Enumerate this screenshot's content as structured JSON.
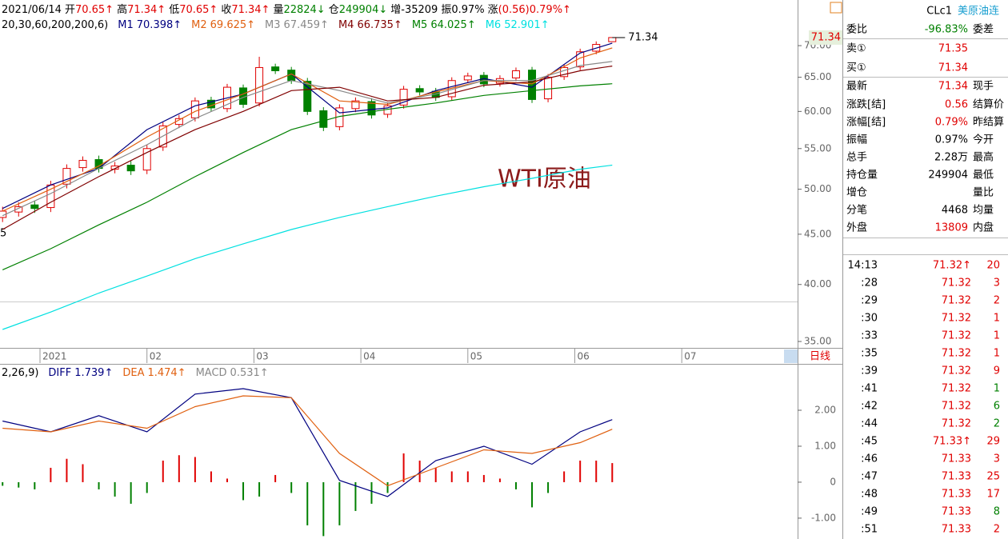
{
  "header": {
    "date": "2021/06/14",
    "quote": [
      {
        "label": "开",
        "value": "70.65↑",
        "color": "#e00000"
      },
      {
        "label": "高",
        "value": "71.34↑",
        "color": "#e00000"
      },
      {
        "label": "低",
        "value": "70.65↑",
        "color": "#e00000"
      },
      {
        "label": "收",
        "value": "71.34↑",
        "color": "#e00000"
      },
      {
        "label": "量",
        "value": "22824↓",
        "color": "#008000"
      },
      {
        "label": "仓",
        "value": "249904↓",
        "color": "#008000"
      },
      {
        "label": "增",
        "value": "-35209",
        "color": "#000000"
      },
      {
        "label": "振",
        "value": "0.97%",
        "color": "#000000"
      },
      {
        "label": "涨",
        "value": "(0.56)0.79%↑",
        "color": "#e00000"
      }
    ]
  },
  "chart_data": [
    {
      "type": "candlestick",
      "params": "20,30,60,200,200,6)",
      "log_scale": true,
      "xlim": [
        0.626,
        8.083
      ],
      "ylim": [
        34.48,
        77.9
      ],
      "xticks": [
        {
          "value": 1,
          "label": "2021"
        },
        {
          "value": 2,
          "label": "02"
        },
        {
          "value": 3,
          "label": "03"
        },
        {
          "value": 4,
          "label": "04"
        },
        {
          "value": 5,
          "label": "05"
        },
        {
          "value": 6,
          "label": "06"
        },
        {
          "value": 7,
          "label": "07"
        }
      ],
      "yticks": [
        {
          "value": 70,
          "label": "70.00"
        },
        {
          "value": 65,
          "label": "65.00"
        },
        {
          "value": 60,
          "label": "60.00"
        },
        {
          "value": 55,
          "label": "55.00"
        },
        {
          "value": 50,
          "label": "50.00"
        },
        {
          "value": 45,
          "label": "45.00"
        },
        {
          "value": 40,
          "label": "40.00"
        },
        {
          "value": 35,
          "label": "35.00"
        }
      ],
      "up_color": "#e00000",
      "down_color": "#008000",
      "candles": [
        [
          0.65,
          46.8,
          48.0,
          46.3,
          47.5
        ],
        [
          0.8,
          47.4,
          48.5,
          46.9,
          48
        ],
        [
          0.95,
          48.2,
          48.7,
          47.3,
          47.8
        ],
        [
          1.1,
          47.9,
          51.0,
          47.4,
          50.5
        ],
        [
          1.25,
          50.6,
          53.0,
          50.1,
          52.5
        ],
        [
          1.4,
          52.6,
          54.0,
          52.1,
          53.5
        ],
        [
          1.55,
          53.6,
          54.1,
          52.0,
          52.5
        ],
        [
          1.7,
          52.4,
          53.3,
          51.9,
          52.8
        ],
        [
          1.85,
          52.9,
          53.4,
          51.7,
          52.2
        ],
        [
          2.0,
          52.3,
          55.5,
          51.8,
          55
        ],
        [
          2.15,
          55.2,
          58.5,
          54.7,
          58
        ],
        [
          2.3,
          58.2,
          59.5,
          57.7,
          59
        ],
        [
          2.45,
          59.1,
          62.0,
          58.6,
          61.5
        ],
        [
          2.6,
          61.6,
          62.1,
          60.0,
          60.5
        ],
        [
          2.75,
          60.4,
          64.0,
          59.9,
          63.5
        ],
        [
          2.9,
          63.4,
          63.9,
          60.5,
          61
        ],
        [
          3.05,
          61.2,
          68.2,
          60.7,
          66.5
        ],
        [
          3.2,
          66.6,
          67.1,
          65.5,
          66
        ],
        [
          3.35,
          66.1,
          66.6,
          64.0,
          64.5
        ],
        [
          3.5,
          64.4,
          64.9,
          59.5,
          60
        ],
        [
          3.65,
          60.1,
          60.6,
          57.3,
          57.8
        ],
        [
          3.8,
          57.9,
          61.0,
          57.4,
          60.5
        ],
        [
          3.95,
          60.4,
          62.0,
          59.9,
          61.5
        ],
        [
          4.1,
          61.4,
          61.9,
          59.0,
          59.5
        ],
        [
          4.25,
          59.6,
          61.3,
          59.1,
          60.8
        ],
        [
          4.4,
          60.9,
          63.7,
          60.4,
          63.2
        ],
        [
          4.55,
          63.3,
          63.8,
          62.3,
          62.8
        ],
        [
          4.7,
          62.9,
          63.4,
          61.5,
          62
        ],
        [
          4.85,
          62.1,
          65.0,
          61.6,
          64.5
        ],
        [
          5.0,
          64.6,
          65.7,
          64.1,
          65.2
        ],
        [
          5.15,
          65.3,
          65.8,
          63.5,
          64
        ],
        [
          5.3,
          64.1,
          65.3,
          63.6,
          64.8
        ],
        [
          5.45,
          64.9,
          66.5,
          64.4,
          66
        ],
        [
          5.6,
          66.1,
          66.6,
          61.2,
          61.7
        ],
        [
          5.75,
          61.8,
          65.5,
          61.3,
          65
        ],
        [
          5.9,
          65.1,
          67.0,
          64.6,
          66.5
        ],
        [
          6.05,
          66.6,
          69.5,
          66.1,
          69
        ],
        [
          6.2,
          69.1,
          70.7,
          68.6,
          70.2
        ],
        [
          6.35,
          70.65,
          71.34,
          70.65,
          71.34
        ]
      ],
      "last_price": 71.34,
      "x": [
        0.65,
        1.1,
        1.55,
        2.0,
        2.45,
        2.9,
        3.35,
        3.8,
        4.25,
        4.7,
        5.15,
        5.6,
        6.05,
        6.35
      ],
      "series": [
        {
          "name": "M1",
          "value_label": "70.398↑",
          "color": "#000080",
          "values": [
            47.8,
            50.5,
            52.5,
            57.5,
            60.8,
            62.5,
            65.5,
            59.8,
            60.5,
            63,
            64.8,
            63.5,
            68.8,
            70.398
          ]
        },
        {
          "name": "M2",
          "value_label": "69.625↑",
          "color": "#e06010",
          "values": [
            47.5,
            50,
            52.8,
            56.5,
            60,
            62.5,
            65.5,
            61.5,
            61,
            62.8,
            64.5,
            64,
            68,
            69.625
          ]
        },
        {
          "name": "M3",
          "value_label": "67.459↑",
          "color": "#888888",
          "values": [
            47,
            49.5,
            52.5,
            55.5,
            59,
            62,
            64.5,
            63,
            61.2,
            62.5,
            64.5,
            64.5,
            66.8,
            67.459
          ]
        },
        {
          "name": "M4",
          "value_label": "66.735↑",
          "color": "#800000",
          "values": [
            45.5,
            48.5,
            51.5,
            54.5,
            57.5,
            60,
            63,
            63.5,
            61.5,
            62,
            63.8,
            64.3,
            66,
            66.735
          ]
        },
        {
          "name": "M5",
          "value_label": "64.025↑",
          "color": "#008000",
          "values": [
            41.4,
            43.5,
            46,
            48.5,
            51.5,
            54.5,
            57.5,
            59.3,
            60.3,
            61.2,
            62.3,
            63,
            63.7,
            64.025
          ]
        },
        {
          "name": "M6",
          "value_label": "52.901↑",
          "color": "#00e0e0",
          "values": [
            36,
            37.5,
            39.2,
            40.8,
            42.5,
            44,
            45.5,
            46.8,
            48,
            49.2,
            50.3,
            51.3,
            52.4,
            52.901
          ]
        }
      ],
      "edge_label": "5",
      "watermark": "WTI原油",
      "period": "日线"
    },
    {
      "type": "macd",
      "params": "2,26,9)",
      "ylim": [
        -1.58,
        3.29
      ],
      "yticks": [
        {
          "value": 2,
          "label": "2.00"
        },
        {
          "value": 1,
          "label": "1.00"
        },
        0,
        {
          "value": -1,
          "label": "-1.00"
        }
      ],
      "x": [
        0.65,
        1.1,
        1.55,
        2.0,
        2.45,
        2.9,
        3.35,
        3.8,
        4.25,
        4.7,
        5.15,
        5.6,
        6.05,
        6.35
      ],
      "series": [
        {
          "name": "DIFF",
          "value_label": "1.739↑",
          "color": "#000080",
          "values": [
            1.7,
            1.4,
            1.85,
            1.4,
            2.45,
            2.6,
            2.35,
            0.05,
            -0.4,
            0.6,
            1.0,
            0.5,
            1.4,
            1.739
          ]
        },
        {
          "name": "DEA",
          "value_label": "1.474↑",
          "color": "#e06010",
          "values": [
            1.5,
            1.4,
            1.7,
            1.5,
            2.1,
            2.4,
            2.35,
            0.8,
            -0.1,
            0.4,
            0.9,
            0.8,
            1.1,
            1.474
          ]
        }
      ],
      "histogram": {
        "name": "MACD",
        "value_label": "0.531↑",
        "color": "#888888",
        "up_color": "#e00000",
        "down_color": "#008000",
        "values": [
          -0.1,
          -0.15,
          -0.2,
          0.4,
          0.65,
          0.5,
          -0.2,
          -0.4,
          -0.6,
          -0.3,
          0.6,
          0.75,
          0.7,
          0.3,
          0.1,
          -0.5,
          -0.4,
          0.2,
          -0.3,
          -1.2,
          -1.5,
          -1.2,
          -0.8,
          -0.6,
          -0.3,
          0.8,
          0.6,
          0.4,
          0.3,
          0.3,
          0.2,
          0.1,
          -0.2,
          -0.7,
          -0.3,
          0.3,
          0.6,
          0.6,
          0.531
        ]
      }
    }
  ],
  "quote_panel": {
    "code": "CLc1",
    "name": "美原油连",
    "rows": [
      {
        "label": "委比",
        "value": "-96.83%",
        "color": "#008000",
        "label2": "委差"
      },
      {
        "label": "卖①",
        "value": "71.35",
        "color": "#e00000"
      },
      {
        "label": "买①",
        "value": "71.34",
        "color": "#e00000"
      },
      {
        "label": "最新",
        "value": "71.34",
        "color": "#e00000",
        "label2": "现手"
      },
      {
        "label": "涨跌[结]",
        "value": "0.56",
        "color": "#e00000",
        "label2": "结算价"
      },
      {
        "label": "涨幅[结]",
        "value": "0.79%",
        "color": "#e00000",
        "label2": "昨结算"
      },
      {
        "label": "振幅",
        "value": "0.97%",
        "color": "#000000",
        "label2": "今开"
      },
      {
        "label": "总手",
        "value": "2.28万",
        "color": "#000000",
        "label2": "最高"
      },
      {
        "label": "持仓量",
        "value": "249904",
        "color": "#000000",
        "label2": "最低"
      },
      {
        "label": "增仓",
        "label2": "量比"
      },
      {
        "label": "分笔",
        "value": "4468",
        "color": "#000000",
        "label2": "均量"
      },
      {
        "label": "外盘",
        "value": "13809",
        "color": "#e00000",
        "label2": "内盘"
      }
    ],
    "price_color": "#e00000",
    "ticks": [
      {
        "time": "14:13",
        "price": "71.32↑",
        "volume": "20",
        "color": "#e00000"
      },
      {
        "time": ":28",
        "price": "71.32",
        "volume": "3",
        "color": "#e00000"
      },
      {
        "time": ":29",
        "price": "71.32",
        "volume": "2",
        "color": "#e00000"
      },
      {
        "time": ":30",
        "price": "71.32",
        "volume": "1",
        "color": "#e00000"
      },
      {
        "time": ":33",
        "price": "71.32",
        "volume": "1",
        "color": "#e00000"
      },
      {
        "time": ":35",
        "price": "71.32",
        "volume": "1",
        "color": "#e00000"
      },
      {
        "time": ":39",
        "price": "71.32",
        "volume": "9",
        "color": "#e00000"
      },
      {
        "time": ":41",
        "price": "71.32",
        "volume": "1",
        "color": "#008000"
      },
      {
        "time": ":42",
        "price": "71.32",
        "volume": "6",
        "color": "#008000"
      },
      {
        "time": ":44",
        "price": "71.32",
        "volume": "2",
        "color": "#008000"
      },
      {
        "time": ":45",
        "price": "71.33↑",
        "volume": "29",
        "color": "#e00000"
      },
      {
        "time": ":46",
        "price": "71.33",
        "volume": "3",
        "color": "#e00000"
      },
      {
        "time": ":47",
        "price": "71.33",
        "volume": "25",
        "color": "#e00000"
      },
      {
        "time": ":48",
        "price": "71.33",
        "volume": "17",
        "color": "#e00000"
      },
      {
        "time": ":49",
        "price": "71.33",
        "volume": "8",
        "color": "#008000"
      },
      {
        "time": ":51",
        "price": "71.33",
        "volume": "2",
        "color": "#e00000"
      }
    ]
  }
}
